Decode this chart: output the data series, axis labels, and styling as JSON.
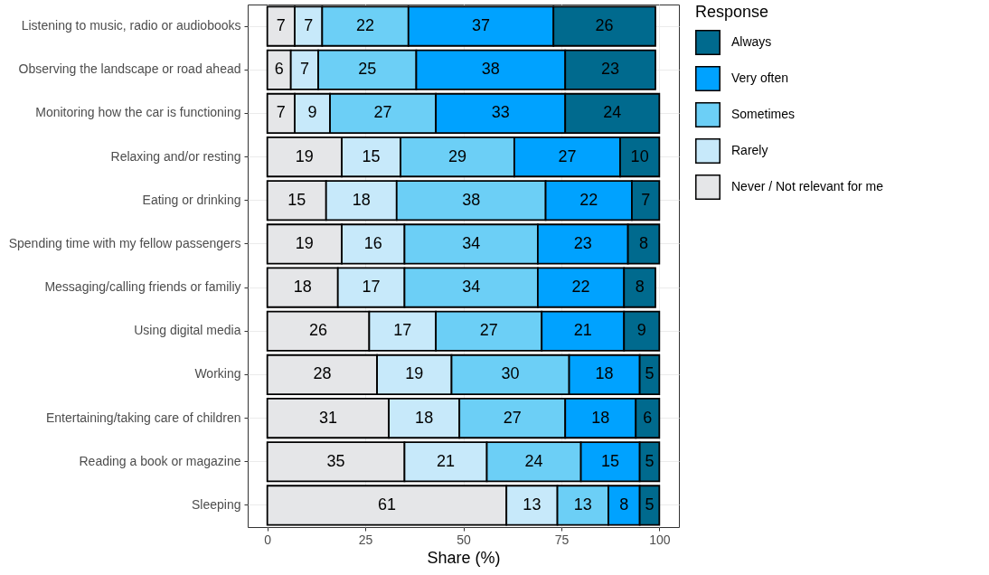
{
  "chart_data": {
    "type": "bar",
    "orientation": "horizontal",
    "stacked": true,
    "xlabel": "Share (%)",
    "legend_title": "Response",
    "categories": [
      "Listening to music, radio or audiobooks",
      "Observing the landscape or road ahead",
      "Monitoring how the car is functioning",
      "Relaxing and/or resting",
      "Eating or drinking",
      "Spending time with my fellow passengers",
      "Messaging/calling friends or familiy",
      "Using digital media",
      "Working",
      "Entertaining/taking care of children",
      "Reading a book or magazine",
      "Sleeping"
    ],
    "series": [
      {
        "name": "Never / Not relevant for me",
        "color": "#e5e6e8",
        "values": [
          7,
          6,
          7,
          19,
          15,
          19,
          18,
          26,
          28,
          31,
          35,
          61
        ]
      },
      {
        "name": "Rarely",
        "color": "#c7e9fa",
        "values": [
          7,
          7,
          9,
          15,
          18,
          16,
          17,
          17,
          19,
          18,
          21,
          13
        ]
      },
      {
        "name": "Sometimes",
        "color": "#6ccff6",
        "values": [
          22,
          25,
          27,
          29,
          38,
          34,
          34,
          27,
          30,
          27,
          24,
          13
        ]
      },
      {
        "name": "Very often",
        "color": "#00a2ff",
        "values": [
          37,
          38,
          33,
          27,
          22,
          23,
          22,
          21,
          18,
          18,
          15,
          8
        ]
      },
      {
        "name": "Always",
        "color": "#006a8e",
        "values": [
          26,
          23,
          24,
          10,
          7,
          8,
          8,
          9,
          5,
          6,
          5,
          5
        ]
      }
    ],
    "xlim": [
      -5,
      105
    ],
    "xticks": [
      0,
      25,
      50,
      75,
      100
    ],
    "grid": true,
    "legend": "right",
    "data_labels": true
  }
}
